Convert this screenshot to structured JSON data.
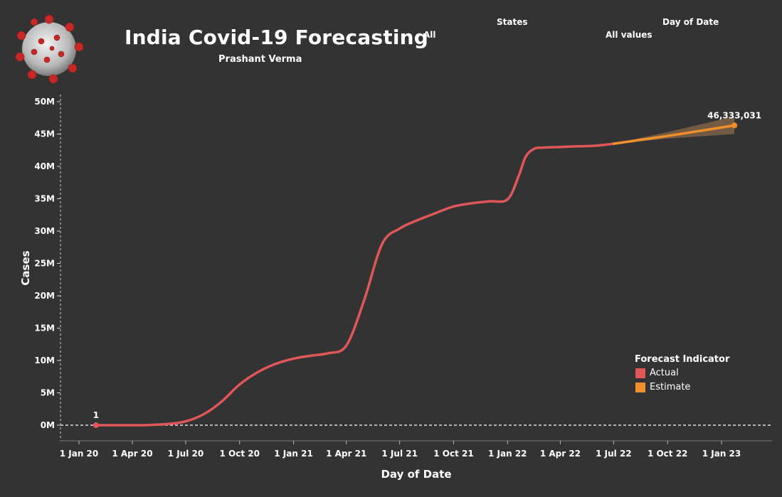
{
  "header": {
    "title": "India Covid-19 Forecasting",
    "subtitle": "Prashant Verma"
  },
  "filters": {
    "states_label": "States",
    "states_value": "All",
    "date_label": "Day of Date",
    "date_value": "All values"
  },
  "legend": {
    "title": "Forecast Indicator",
    "items": [
      {
        "label": "Actual",
        "color": "#e15759"
      },
      {
        "label": "Estimate",
        "color": "#f28e2b"
      }
    ]
  },
  "chart_data": {
    "type": "line",
    "xlabel": "Day of Date",
    "ylabel": "Cases",
    "ylim": [
      0,
      50000000
    ],
    "x_ticks": [
      "1 Jan 20",
      "1 Apr 20",
      "1 Jul 20",
      "1 Oct 20",
      "1 Jan 21",
      "1 Apr 21",
      "1 Jul 21",
      "1 Oct 21",
      "1 Jan 22",
      "1 Apr 22",
      "1 Jul 22",
      "1 Oct 22",
      "1 Jan 23"
    ],
    "y_ticks": [
      "0M",
      "5M",
      "10M",
      "15M",
      "20M",
      "25M",
      "30M",
      "35M",
      "40M",
      "45M",
      "50M"
    ],
    "series": [
      {
        "name": "Actual",
        "color": "#e15759",
        "points": [
          [
            "2020-01-30",
            1
          ],
          [
            "2020-03-01",
            3
          ],
          [
            "2020-04-01",
            2000
          ],
          [
            "2020-05-01",
            35000
          ],
          [
            "2020-06-01",
            190000
          ],
          [
            "2020-07-01",
            590000
          ],
          [
            "2020-08-01",
            1700000
          ],
          [
            "2020-09-01",
            3700000
          ],
          [
            "2020-10-01",
            6300000
          ],
          [
            "2020-11-01",
            8200000
          ],
          [
            "2020-12-01",
            9460000
          ],
          [
            "2021-01-01",
            10290000
          ],
          [
            "2021-02-01",
            10760000
          ],
          [
            "2021-03-01",
            11120000
          ],
          [
            "2021-04-01",
            12300000
          ],
          [
            "2021-05-01",
            19200000
          ],
          [
            "2021-06-01",
            28000000
          ],
          [
            "2021-07-01",
            30400000
          ],
          [
            "2021-08-01",
            31700000
          ],
          [
            "2021-09-01",
            32800000
          ],
          [
            "2021-10-01",
            33800000
          ],
          [
            "2021-11-01",
            34300000
          ],
          [
            "2021-12-01",
            34600000
          ],
          [
            "2022-01-01",
            34900000
          ],
          [
            "2022-01-20",
            38500000
          ],
          [
            "2022-02-01",
            41500000
          ],
          [
            "2022-02-15",
            42700000
          ],
          [
            "2022-03-01",
            42900000
          ],
          [
            "2022-04-01",
            43000000
          ],
          [
            "2022-05-01",
            43100000
          ],
          [
            "2022-06-01",
            43200000
          ],
          [
            "2022-07-01",
            43500000
          ]
        ]
      },
      {
        "name": "Estimate",
        "color": "#f28e2b",
        "points": [
          [
            "2022-07-01",
            43500000
          ],
          [
            "2022-10-01",
            44700000
          ],
          [
            "2023-01-23",
            46333031
          ]
        ],
        "band_upper": [
          [
            "2022-07-01",
            43500000
          ],
          [
            "2022-10-01",
            45300000
          ],
          [
            "2023-01-23",
            47700000
          ]
        ],
        "band_lower": [
          [
            "2022-07-01",
            43500000
          ],
          [
            "2022-10-01",
            44300000
          ],
          [
            "2023-01-23",
            45000000
          ]
        ]
      }
    ],
    "annotations": [
      {
        "x": "2020-01-30",
        "y": 1,
        "text": "1"
      },
      {
        "x": "2023-01-23",
        "y": 46333031,
        "text": "46,333,031"
      }
    ],
    "grid": false
  }
}
